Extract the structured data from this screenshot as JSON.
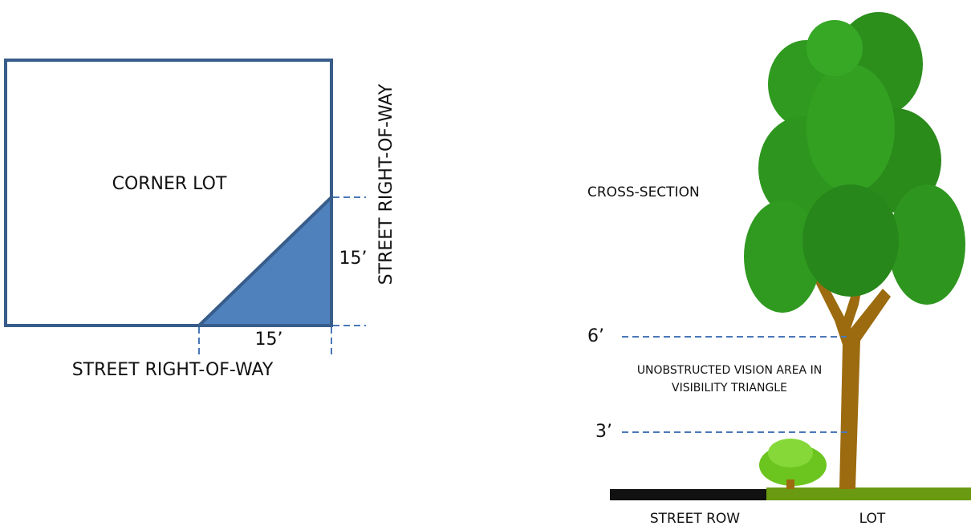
{
  "plan": {
    "title": "CORNER LOT",
    "street_bottom": "STREET RIGHT-OF-WAY",
    "street_side": "STREET RIGHT-OF-WAY",
    "dim_side": "15’",
    "dim_bottom": "15’"
  },
  "section": {
    "title": "CROSS-SECTION",
    "height_upper": "6’",
    "height_lower": "3’",
    "vision_note": [
      "UNOBSTRUCTED VISION AREA IN",
      "VISIBILITY TRIANGLE"
    ],
    "street_row": "STREET ROW",
    "lot": "LOT"
  }
}
